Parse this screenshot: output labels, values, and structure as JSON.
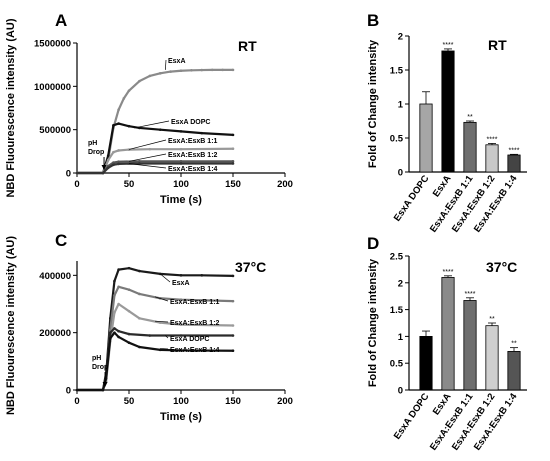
{
  "figure": {
    "panels": [
      {
        "panel_label": "A",
        "condition": "RT",
        "xlabel": "Time (s)",
        "ylabel": "NBD Fluourescence intensity (AU)",
        "annotation": "pH\nDrop",
        "colors": {
          "EsxA": "#8a8a8a",
          "EsxA DOPC": "#111111",
          "EsxA:EsxB 1:1": "#999999",
          "EsxA:EsxB 1:2": "#555555",
          "EsxA:EsxB 1:4": "#333333"
        }
      },
      {
        "panel_label": "B",
        "condition": "RT",
        "ylabel": "Fold of Change intensity",
        "colors": [
          "#a6a6a6",
          "#000000",
          "#6e6e6e",
          "#c9c9c9",
          "#444444"
        ]
      },
      {
        "panel_label": "C",
        "condition": "37°C",
        "xlabel": "Time (s)",
        "ylabel": "NBD Fluourescence intensity (AU)",
        "annotation": "pH\nDrop",
        "colors": {
          "EsxA": "#1a1a1a",
          "EsxA:EsxB 1:1": "#7a7a7a",
          "EsxA:EsxB 1:2": "#9a9a9a",
          "EsxA DOPC": "#2a2a2a",
          "EsxA:EsxB 1:4": "#111111"
        }
      },
      {
        "panel_label": "D",
        "condition": "37°C",
        "ylabel": "Fold of Change intensity",
        "colors": [
          "#000000",
          "#8a8a8a",
          "#6e6e6e",
          "#cfcfcf",
          "#555555"
        ]
      }
    ]
  },
  "chart_data": [
    {
      "type": "line",
      "title": "RT",
      "xlabel": "Time (s)",
      "ylabel": "NBD Fluourescence intensity (AU)",
      "xlim": [
        0,
        200
      ],
      "ylim": [
        0,
        1500000
      ],
      "xticks": [
        0,
        50,
        100,
        150,
        200
      ],
      "yticks": [
        0,
        500000,
        1000000,
        1500000
      ],
      "series": [
        {
          "name": "EsxA",
          "x": [
            0,
            25,
            30,
            35,
            40,
            45,
            50,
            60,
            70,
            80,
            90,
            100,
            110,
            120,
            130,
            140,
            150
          ],
          "y": [
            0,
            0,
            150000,
            520000,
            730000,
            860000,
            950000,
            1060000,
            1120000,
            1150000,
            1170000,
            1180000,
            1185000,
            1188000,
            1190000,
            1190000,
            1190000
          ]
        },
        {
          "name": "EsxA DOPC",
          "x": [
            0,
            25,
            30,
            35,
            40,
            50,
            60,
            80,
            100,
            120,
            150
          ],
          "y": [
            0,
            0,
            200000,
            550000,
            570000,
            540000,
            520000,
            500000,
            480000,
            460000,
            440000
          ]
        },
        {
          "name": "EsxA:EsxB 1:1",
          "x": [
            0,
            25,
            30,
            35,
            40,
            50,
            70,
            100,
            150
          ],
          "y": [
            0,
            0,
            150000,
            240000,
            260000,
            270000,
            275000,
            275000,
            280000
          ]
        },
        {
          "name": "EsxA:EsxB 1:2",
          "x": [
            0,
            25,
            30,
            35,
            40,
            60,
            100,
            150
          ],
          "y": [
            0,
            0,
            80000,
            120000,
            130000,
            135000,
            135000,
            135000
          ]
        },
        {
          "name": "EsxA:EsxB 1:4",
          "x": [
            0,
            25,
            30,
            35,
            40,
            60,
            100,
            150
          ],
          "y": [
            0,
            0,
            60000,
            95000,
            105000,
            110000,
            110000,
            110000
          ]
        }
      ]
    },
    {
      "type": "bar",
      "title": "RT",
      "ylabel": "Fold of Change intensity",
      "ylim": [
        0,
        2.0
      ],
      "yticks": [
        0.0,
        0.5,
        1.0,
        1.5,
        2.0
      ],
      "categories": [
        "EsxA DOPC",
        "EsxA",
        "EsxA:EsxB 1:1",
        "EsxA:EsxB 1:2",
        "EsxA:EsxB 1:4"
      ],
      "values": [
        1.0,
        1.78,
        0.73,
        0.4,
        0.25
      ],
      "errors": [
        0.18,
        0.03,
        0.02,
        0.02,
        0.01
      ],
      "significance": [
        "",
        "****",
        "**",
        "****",
        "****"
      ]
    },
    {
      "type": "line",
      "title": "37°C",
      "xlabel": "Time (s)",
      "ylabel": "NBD Fluourescence intensity (AU)",
      "xlim": [
        0,
        200
      ],
      "ylim": [
        0,
        450000
      ],
      "xticks": [
        0,
        50,
        100,
        150,
        200
      ],
      "yticks": [
        0,
        200000,
        400000
      ],
      "series": [
        {
          "name": "EsxA",
          "x": [
            0,
            25,
            28,
            32,
            36,
            40,
            50,
            60,
            80,
            100,
            120,
            150
          ],
          "y": [
            0,
            0,
            50000,
            250000,
            380000,
            420000,
            425000,
            415000,
            405000,
            400000,
            400000,
            398000
          ]
        },
        {
          "name": "EsxA:EsxB 1:1",
          "x": [
            0,
            25,
            28,
            32,
            36,
            40,
            50,
            60,
            80,
            100,
            150
          ],
          "y": [
            0,
            0,
            40000,
            210000,
            330000,
            360000,
            350000,
            335000,
            320000,
            315000,
            310000
          ]
        },
        {
          "name": "EsxA:EsxB 1:2",
          "x": [
            0,
            25,
            28,
            32,
            36,
            40,
            50,
            60,
            80,
            100,
            150
          ],
          "y": [
            0,
            0,
            30000,
            170000,
            270000,
            300000,
            275000,
            250000,
            235000,
            228000,
            225000
          ]
        },
        {
          "name": "EsxA DOPC",
          "x": [
            0,
            25,
            28,
            32,
            36,
            40,
            50,
            70,
            100,
            150
          ],
          "y": [
            0,
            0,
            60000,
            200000,
            215000,
            205000,
            195000,
            190000,
            190000,
            190000
          ]
        },
        {
          "name": "EsxA:EsxB 1:4",
          "x": [
            0,
            25,
            28,
            32,
            36,
            40,
            50,
            60,
            80,
            100,
            150
          ],
          "y": [
            0,
            0,
            40000,
            180000,
            200000,
            185000,
            165000,
            150000,
            140000,
            138000,
            137000
          ]
        }
      ]
    },
    {
      "type": "bar",
      "title": "37°C",
      "ylabel": "Fold of Change intensity",
      "ylim": [
        0,
        2.5
      ],
      "yticks": [
        0.0,
        0.5,
        1.0,
        1.5,
        2.0,
        2.5
      ],
      "categories": [
        "EsxA DOPC",
        "EsxA",
        "EsxA:EsxB 1:1",
        "EsxA:EsxB 1:2",
        "EsxA:EsxB 1:4"
      ],
      "values": [
        1.0,
        2.1,
        1.67,
        1.2,
        0.72
      ],
      "errors": [
        0.1,
        0.03,
        0.05,
        0.05,
        0.07
      ],
      "significance": [
        "",
        "****",
        "****",
        "**",
        "**"
      ]
    }
  ]
}
